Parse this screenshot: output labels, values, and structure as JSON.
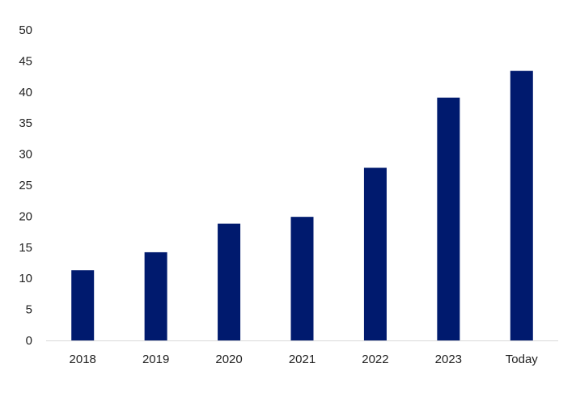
{
  "chart_data": {
    "type": "bar",
    "categories": [
      "2018",
      "2019",
      "2020",
      "2021",
      "2022",
      "2023",
      "Today"
    ],
    "values": [
      11.3,
      14.2,
      18.8,
      19.9,
      27.8,
      39.1,
      43.4
    ],
    "title": "",
    "xlabel": "",
    "ylabel": "",
    "ylim": [
      0,
      50
    ],
    "yticks": [
      0,
      5,
      10,
      15,
      20,
      25,
      30,
      35,
      40,
      45,
      50
    ],
    "grid": false,
    "legend": "none",
    "bar_color": "#001a6e",
    "axis_color": "#d9d9d9"
  }
}
